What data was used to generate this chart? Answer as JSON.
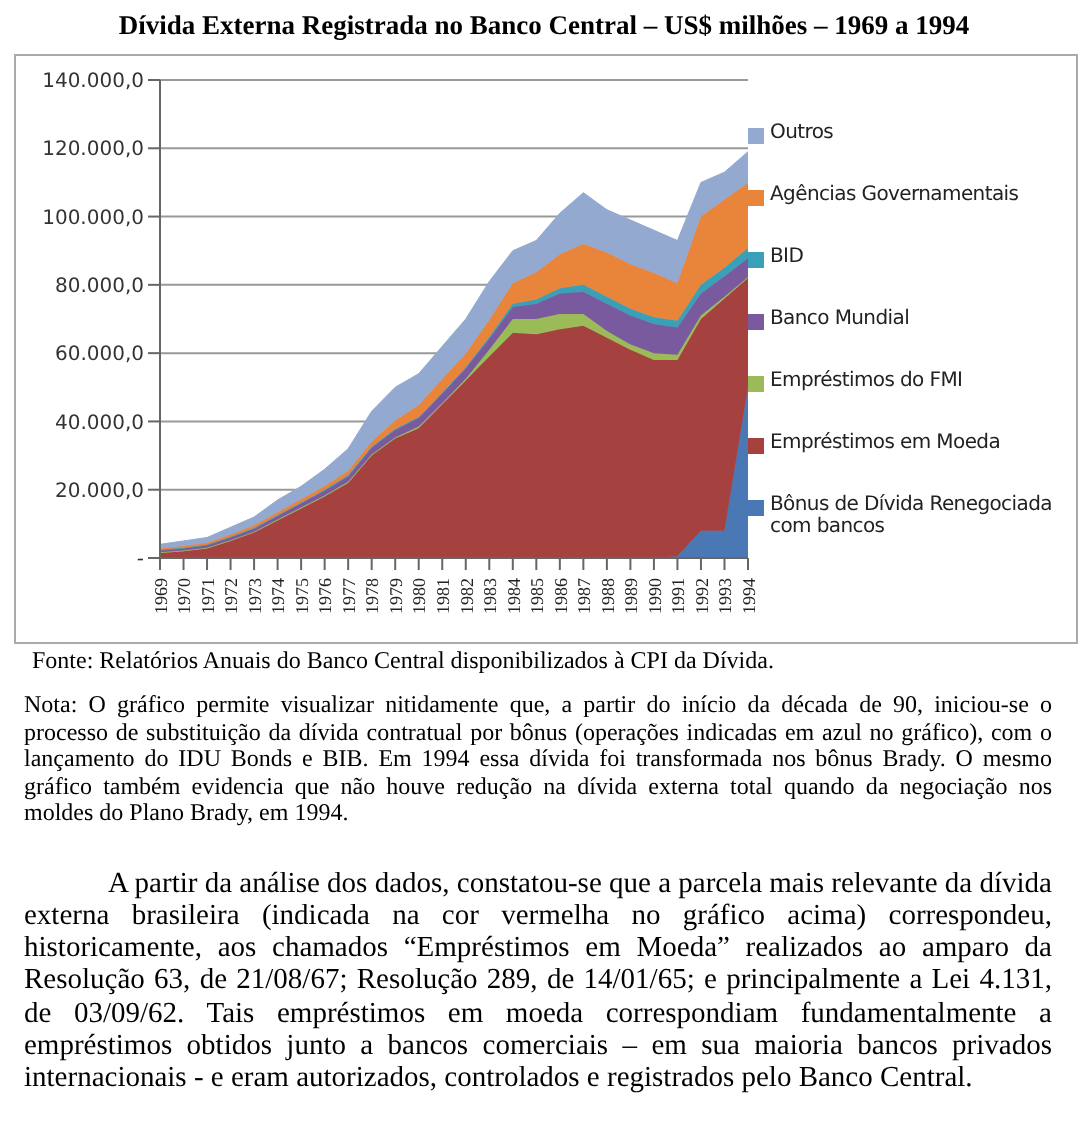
{
  "chart_data": {
    "type": "area",
    "stacked": true,
    "title": "Dívida Externa Registrada no Banco Central – US$ milhões – 1969 a 1994",
    "categories": [
      "1969",
      "1970",
      "1971",
      "1972",
      "1973",
      "1974",
      "1975",
      "1976",
      "1977",
      "1978",
      "1979",
      "1980",
      "1981",
      "1982",
      "1983",
      "1984",
      "1985",
      "1986",
      "1987",
      "1988",
      "1989",
      "1990",
      "1991",
      "1992",
      "1993",
      "1994"
    ],
    "series": [
      {
        "name": "Bônus de Dívida Renegociada com bancos",
        "color": "#4a78b4",
        "values": [
          0,
          0,
          0,
          0,
          0,
          0,
          0,
          0,
          0,
          0,
          0,
          0,
          0,
          0,
          0,
          0,
          0,
          0,
          0,
          0,
          0,
          0,
          500,
          8000,
          8000,
          50000
        ]
      },
      {
        "name": "Empréstimos em Moeda",
        "color": "#a5413f",
        "values": [
          1500,
          2000,
          2800,
          5000,
          7500,
          11000,
          14500,
          18000,
          22000,
          30000,
          35000,
          38000,
          45000,
          52000,
          59000,
          66000,
          65500,
          67000,
          68000,
          64500,
          61000,
          58000,
          57500,
          62000,
          68000,
          32000
        ]
      },
      {
        "name": "Empréstimos do FMI",
        "color": "#9bbb59",
        "values": [
          200,
          200,
          200,
          200,
          200,
          300,
          300,
          300,
          300,
          300,
          300,
          500,
          300,
          500,
          2000,
          4000,
          4500,
          4500,
          3500,
          2000,
          1500,
          2000,
          1500,
          1000,
          500,
          300
        ]
      },
      {
        "name": "Banco Mundial",
        "color": "#7a5a9e",
        "values": [
          500,
          600,
          700,
          800,
          900,
          1000,
          1200,
          1400,
          1600,
          2000,
          2200,
          2500,
          2800,
          3000,
          3200,
          3500,
          4500,
          6000,
          6500,
          8000,
          8500,
          8500,
          8000,
          6500,
          6000,
          5500
        ]
      },
      {
        "name": "BID",
        "color": "#3aa0b8",
        "values": [
          200,
          200,
          200,
          200,
          200,
          200,
          200,
          300,
          300,
          300,
          300,
          300,
          300,
          400,
          500,
          1000,
          1200,
          1500,
          2000,
          2000,
          2000,
          2000,
          2000,
          2500,
          2500,
          3000
        ]
      },
      {
        "name": "Agências Governamentais",
        "color": "#e8853a",
        "values": [
          400,
          500,
          600,
          700,
          800,
          900,
          1000,
          1100,
          1300,
          1500,
          2500,
          3500,
          4000,
          4000,
          5000,
          6000,
          8000,
          10000,
          12000,
          13000,
          13000,
          13000,
          11000,
          20000,
          20000,
          19000
        ]
      },
      {
        "name": "Outros",
        "color": "#93a9d0",
        "values": [
          1200,
          1500,
          1500,
          2100,
          2400,
          3600,
          3800,
          4900,
          6500,
          8900,
          9700,
          9200,
          9600,
          10100,
          11300,
          9500,
          9300,
          12000,
          15000,
          12500,
          13000,
          12500,
          12500,
          10000,
          8000,
          9200
        ]
      }
    ],
    "ylim": [
      0,
      140000
    ],
    "yticks": [
      {
        "value": 0,
        "label": "-"
      },
      {
        "value": 20000,
        "label": "20.000,0"
      },
      {
        "value": 40000,
        "label": "40.000,0"
      },
      {
        "value": 60000,
        "label": "60.000,0"
      },
      {
        "value": 80000,
        "label": "80.000,0"
      },
      {
        "value": 100000,
        "label": "100.000,0"
      },
      {
        "value": 120000,
        "label": "120.000,0"
      },
      {
        "value": 140000,
        "label": "140.000,0"
      }
    ],
    "grid": "y",
    "legend": "right",
    "annotations": [
      "Fonte: Relatórios Anuais do Banco Central disponibilizados à CPI da Dívida.",
      "Nota: O gráfico permite visualizar nitidamente que, a partir do início da década de 90, iniciou-se o processo de substituição da dívida contratual por bônus (operações indicadas em azul no gráfico), com o lançamento do IDU Bonds e BIB. Em 1994 essa dívida foi transformada nos bônus Brady. O mesmo gráfico também evidencia que não houve redução na dívida externa total quando da negociação nos moldes do Plano Brady, em 1994.",
      "A partir da análise dos dados, constatou-se que a parcela mais relevante da dívida externa brasileira (indicada na cor vermelha no gráfico acima) correspondeu, historicamente, aos chamados “Empréstimos em Moeda” realizados ao amparo da Resolução 63, de 21/08/67; Resolução 289, de 14/01/65; e principalmente a Lei 4.131, de 03/09/62. Tais empréstimos em moeda correspondiam fundamentalmente a empréstimos obtidos junto a bancos comerciais – em sua maioria bancos privados internacionais - e eram autorizados, controlados e registrados pelo Banco Central."
    ]
  }
}
